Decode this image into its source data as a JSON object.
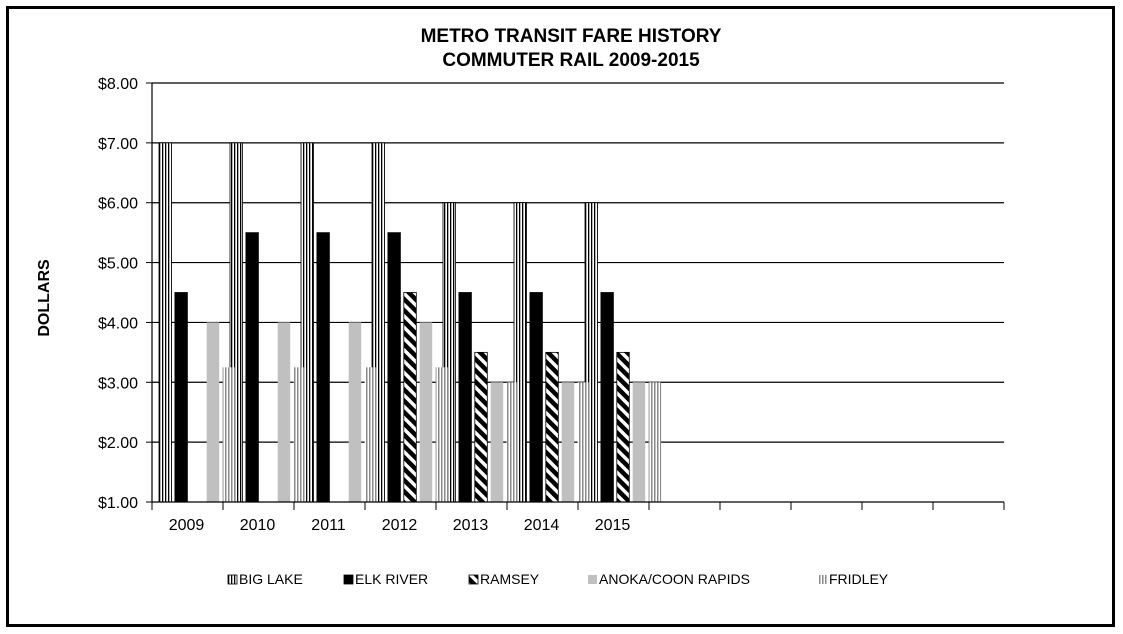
{
  "chart_data": {
    "type": "bar",
    "title": "METRO TRANSIT FARE HISTORY",
    "subtitle": "COMMUTER RAIL 2009-2015",
    "ylabel": "DOLLARS",
    "xlabel": "",
    "ylim": [
      1,
      8
    ],
    "y_ticks": [
      "$1.00",
      "$2.00",
      "$3.00",
      "$4.00",
      "$5.00",
      "$6.00",
      "$7.00",
      "$8.00"
    ],
    "categories": [
      "2009",
      "2010",
      "2011",
      "2012",
      "2013",
      "2014",
      "2015",
      "",
      "",
      "",
      "",
      ""
    ],
    "grid": true,
    "legend_position": "bottom",
    "series": [
      {
        "name": "BIG LAKE",
        "pattern": "vertical-stripes-white",
        "values": [
          7.0,
          7.0,
          7.0,
          7.0,
          6.0,
          6.0,
          6.0,
          null,
          null,
          null,
          null,
          null
        ]
      },
      {
        "name": "ELK RIVER",
        "pattern": "solid-black",
        "values": [
          4.5,
          5.5,
          5.5,
          5.5,
          4.5,
          4.5,
          4.5,
          null,
          null,
          null,
          null,
          null
        ]
      },
      {
        "name": "RAMSEY",
        "pattern": "diagonal-stripes",
        "values": [
          null,
          null,
          null,
          4.5,
          3.5,
          3.5,
          3.5,
          null,
          null,
          null,
          null,
          null
        ]
      },
      {
        "name": "ANOKA/COON RAPIDS",
        "pattern": "solid-lightgray",
        "values": [
          4.0,
          4.0,
          4.0,
          4.0,
          3.0,
          3.0,
          3.0,
          null,
          null,
          null,
          null,
          null
        ]
      },
      {
        "name": "FRIDLEY",
        "pattern": "vertical-stripes-gray",
        "values": [
          3.25,
          3.25,
          3.25,
          3.25,
          3.0,
          3.0,
          3.0,
          null,
          null,
          null,
          null,
          null
        ]
      }
    ]
  }
}
